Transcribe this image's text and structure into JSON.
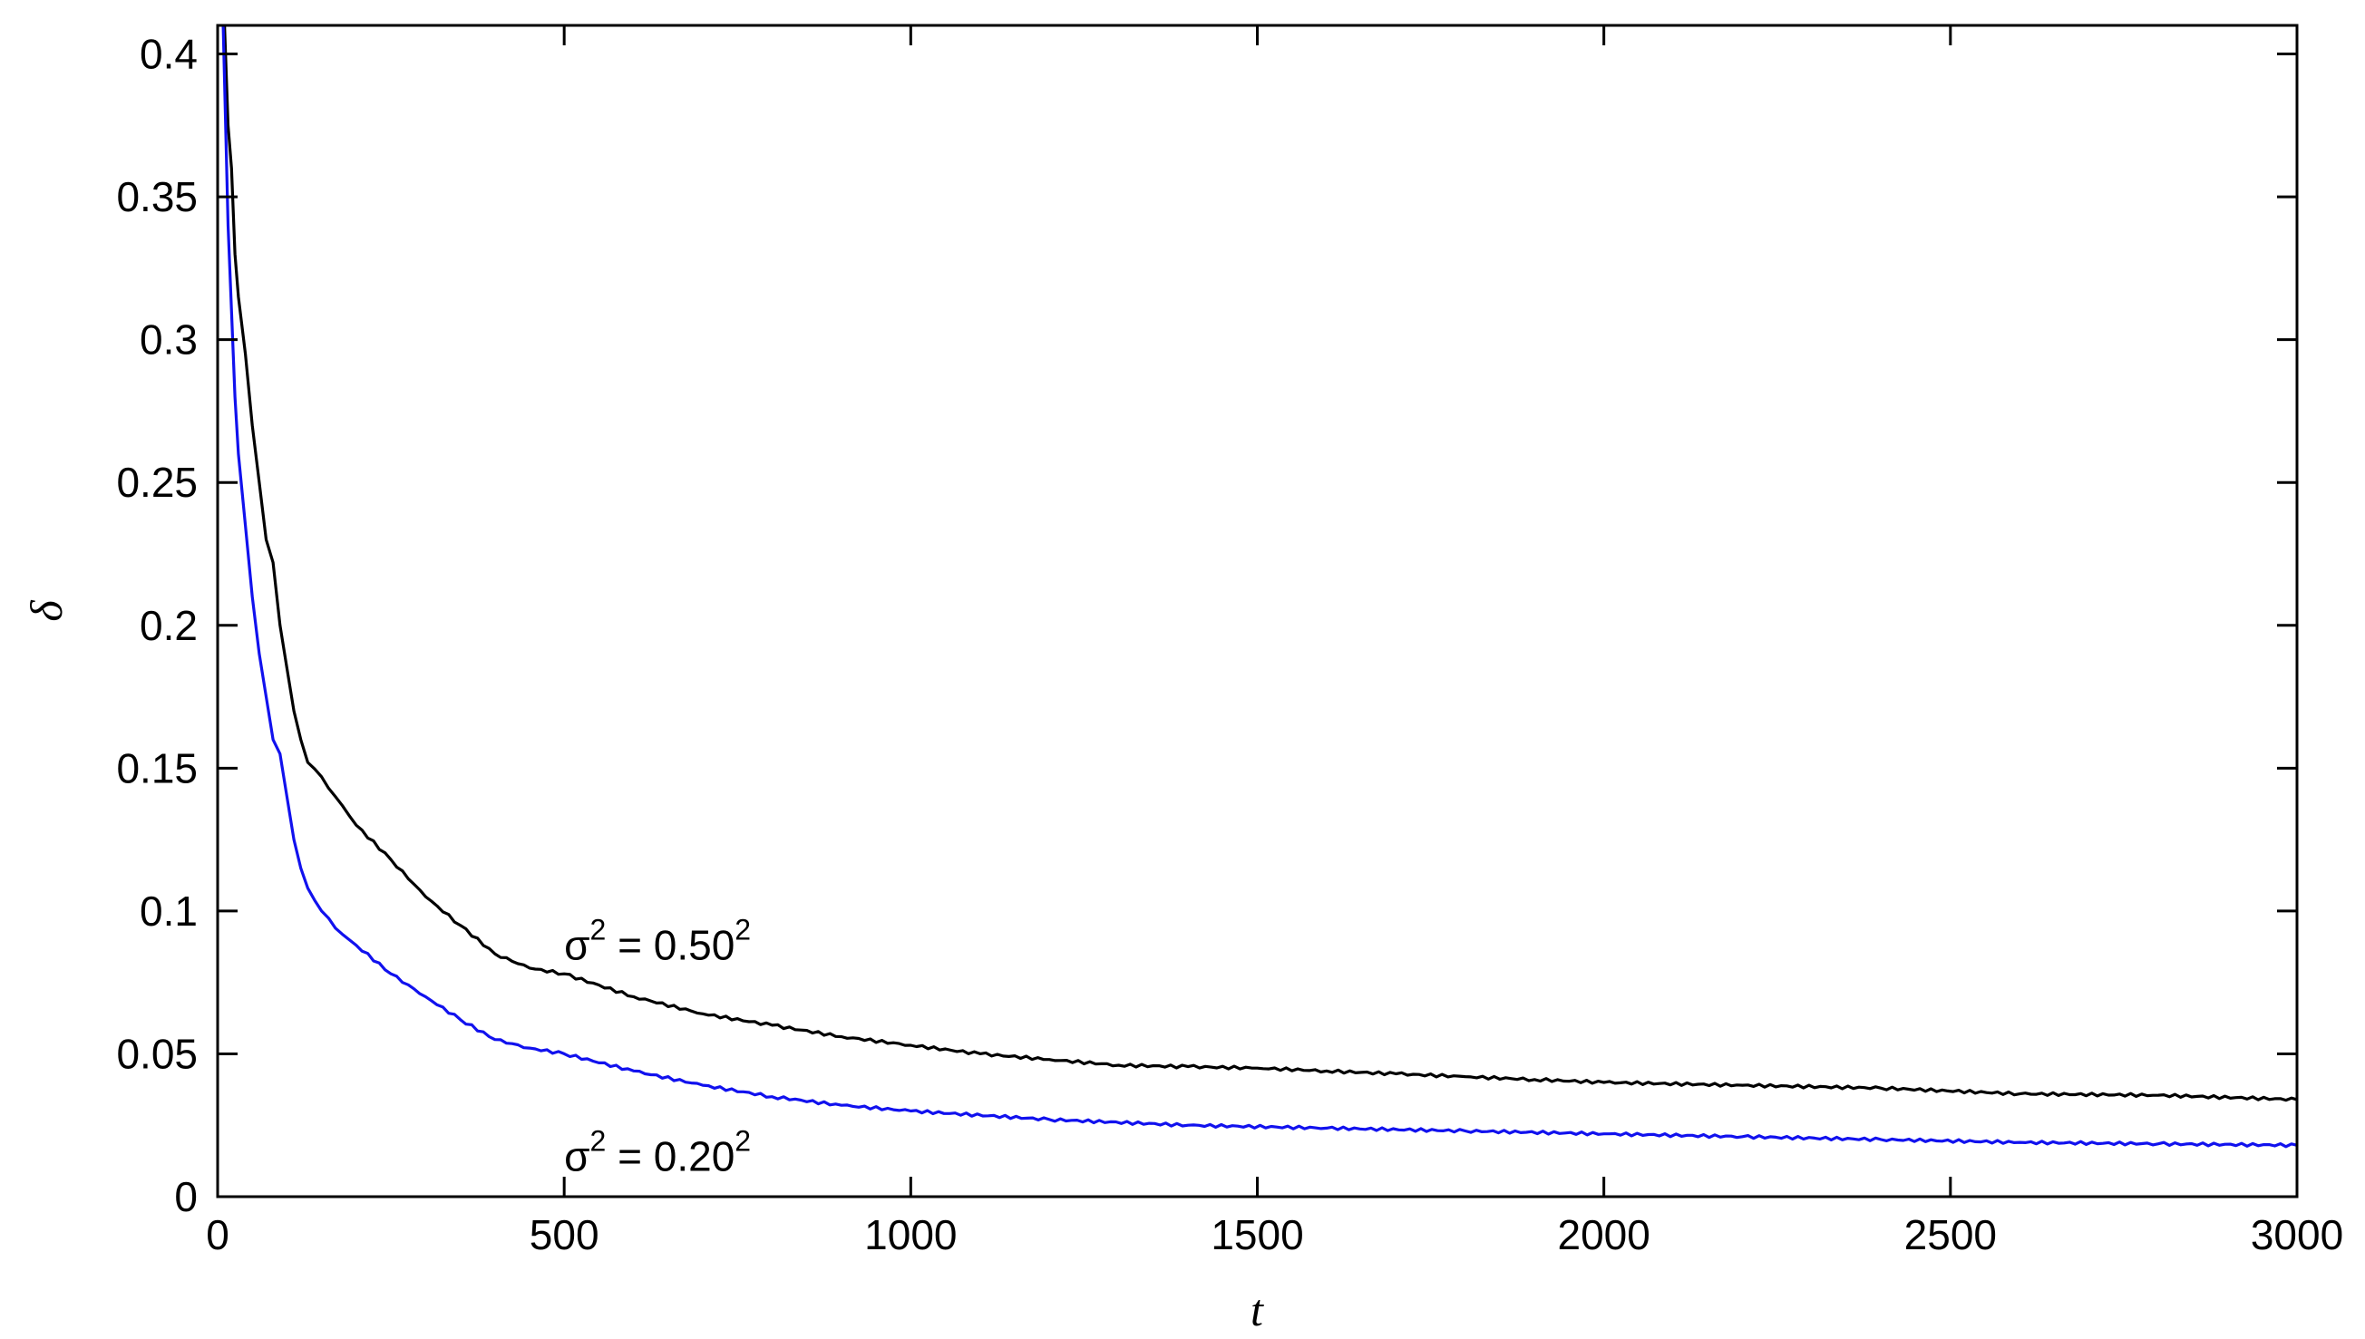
{
  "chart_data": {
    "type": "line",
    "title": "",
    "xlabel": "t",
    "ylabel": "δ",
    "xlim": [
      0,
      3000
    ],
    "ylim": [
      0,
      0.41
    ],
    "xticks": [
      0,
      500,
      1000,
      1500,
      2000,
      2500,
      3000
    ],
    "xtick_labels": [
      "0",
      "500",
      "1000",
      "1500",
      "2000",
      "2500",
      "3000"
    ],
    "yticks": [
      0,
      0.05,
      0.1,
      0.15,
      0.2,
      0.25,
      0.3,
      0.35,
      0.4
    ],
    "ytick_labels": [
      "0",
      "0.05",
      "0.1",
      "0.15",
      "0.2",
      "0.25",
      "0.3",
      "0.35",
      "0.4"
    ],
    "grid": false,
    "legend": "none",
    "annotations": [
      {
        "base": "σ",
        "exp": "2",
        "middle": " = 0.50",
        "exp2": "2",
        "x": 500,
        "y": 0.083,
        "series": 0
      },
      {
        "base": "σ",
        "exp": "2",
        "middle": " = 0.20",
        "exp2": "2",
        "x": 500,
        "y": 0.009,
        "series": 1
      }
    ],
    "series": [
      {
        "color": "#000000",
        "points": [
          [
            10,
            0.41
          ],
          [
            15,
            0.375
          ],
          [
            20,
            0.36
          ],
          [
            25,
            0.33
          ],
          [
            30,
            0.315
          ],
          [
            40,
            0.295
          ],
          [
            50,
            0.27
          ],
          [
            60,
            0.25
          ],
          [
            70,
            0.23
          ],
          [
            80,
            0.222
          ],
          [
            90,
            0.2
          ],
          [
            100,
            0.185
          ],
          [
            110,
            0.17
          ],
          [
            120,
            0.16
          ],
          [
            130,
            0.152
          ],
          [
            150,
            0.147
          ],
          [
            170,
            0.14
          ],
          [
            200,
            0.13
          ],
          [
            250,
            0.118
          ],
          [
            300,
            0.105
          ],
          [
            350,
            0.095
          ],
          [
            400,
            0.085
          ],
          [
            450,
            0.08
          ],
          [
            500,
            0.078
          ],
          [
            600,
            0.07
          ],
          [
            700,
            0.064
          ],
          [
            800,
            0.06
          ],
          [
            900,
            0.056
          ],
          [
            1000,
            0.053
          ],
          [
            1100,
            0.05
          ],
          [
            1200,
            0.048
          ],
          [
            1300,
            0.046
          ],
          [
            1400,
            0.0455
          ],
          [
            1500,
            0.045
          ],
          [
            1600,
            0.044
          ],
          [
            1700,
            0.043
          ],
          [
            1800,
            0.042
          ],
          [
            1900,
            0.041
          ],
          [
            2000,
            0.04
          ],
          [
            2200,
            0.039
          ],
          [
            2400,
            0.038
          ],
          [
            2600,
            0.036
          ],
          [
            2800,
            0.0355
          ],
          [
            3000,
            0.034
          ]
        ]
      },
      {
        "color": "#1111ee",
        "points": [
          [
            8,
            0.41
          ],
          [
            12,
            0.37
          ],
          [
            15,
            0.34
          ],
          [
            20,
            0.31
          ],
          [
            25,
            0.28
          ],
          [
            30,
            0.26
          ],
          [
            40,
            0.235
          ],
          [
            50,
            0.21
          ],
          [
            60,
            0.19
          ],
          [
            70,
            0.175
          ],
          [
            80,
            0.16
          ],
          [
            90,
            0.155
          ],
          [
            100,
            0.14
          ],
          [
            110,
            0.125
          ],
          [
            120,
            0.115
          ],
          [
            130,
            0.108
          ],
          [
            150,
            0.1
          ],
          [
            170,
            0.094
          ],
          [
            200,
            0.088
          ],
          [
            250,
            0.078
          ],
          [
            300,
            0.07
          ],
          [
            350,
            0.062
          ],
          [
            400,
            0.055
          ],
          [
            450,
            0.052
          ],
          [
            500,
            0.05
          ],
          [
            600,
            0.044
          ],
          [
            700,
            0.039
          ],
          [
            800,
            0.035
          ],
          [
            900,
            0.032
          ],
          [
            1000,
            0.03
          ],
          [
            1200,
            0.027
          ],
          [
            1400,
            0.025
          ],
          [
            1600,
            0.024
          ],
          [
            1800,
            0.023
          ],
          [
            2000,
            0.022
          ],
          [
            2200,
            0.021
          ],
          [
            2400,
            0.02
          ],
          [
            2600,
            0.019
          ],
          [
            2800,
            0.0185
          ],
          [
            3000,
            0.018
          ]
        ]
      }
    ]
  }
}
